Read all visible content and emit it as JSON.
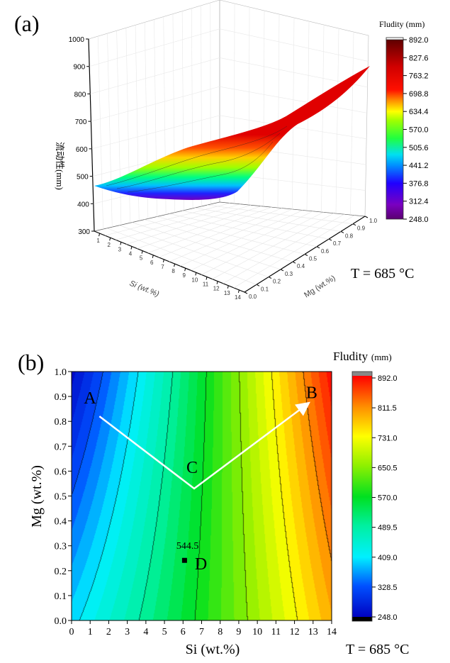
{
  "chart_data": [
    {
      "panel_label": "(a)",
      "type": "surface3d",
      "zlabel": "流动性(mm)",
      "xlabel": "Si (wt.%)",
      "ylabel": "Mg (wt.%)",
      "z_ticks": [
        "1000",
        "900",
        "800",
        "700",
        "600",
        "500",
        "400",
        "300"
      ],
      "x_ticks": [
        "1",
        "2",
        "3",
        "4",
        "5",
        "6",
        "7",
        "8",
        "9",
        "10",
        "11",
        "12",
        "13",
        "14"
      ],
      "y_ticks": [
        "0.0",
        "0.1",
        "0.2",
        "0.3",
        "0.4",
        "0.5",
        "0.6",
        "0.7",
        "0.8",
        "0.9",
        "1.0"
      ],
      "zlim": [
        300,
        1000
      ],
      "colorbar": {
        "title": "Fludity (mm)",
        "ticks": [
          "892.0",
          "827.6",
          "763.2",
          "698.8",
          "634.4",
          "570.0",
          "505.6",
          "441.2",
          "376.8",
          "312.4",
          "248.0"
        ],
        "range": [
          248.0,
          892.0
        ]
      },
      "annotation": "T = 685 °C"
    },
    {
      "panel_label": "(b)",
      "type": "heatmap",
      "xlabel": "Si (wt.%)",
      "ylabel": "Mg (wt.%)",
      "xlim": [
        0,
        14
      ],
      "ylim": [
        0,
        1.0
      ],
      "x_ticks": [
        "0",
        "1",
        "2",
        "3",
        "4",
        "5",
        "6",
        "7",
        "8",
        "9",
        "10",
        "11",
        "12",
        "13",
        "14"
      ],
      "y_ticks": [
        "0.0",
        "0.1",
        "0.2",
        "0.3",
        "0.4",
        "0.5",
        "0.6",
        "0.7",
        "0.8",
        "0.9",
        "1.0"
      ],
      "colorbar": {
        "title": "Fludity",
        "title_unit": "(mm)",
        "ticks": [
          "892.0",
          "811.5",
          "731.0",
          "650.5",
          "570.0",
          "489.5",
          "409.0",
          "328.5",
          "248.0"
        ],
        "range": [
          248.0,
          892.0
        ]
      },
      "points": [
        {
          "label": "A",
          "si": 1.5,
          "mg": 0.82
        },
        {
          "label": "C",
          "si": 6.6,
          "mg": 0.53
        },
        {
          "label": "B",
          "si": 12.7,
          "mg": 0.87
        },
        {
          "label": "D",
          "si": 6.1,
          "mg": 0.24,
          "value_label": "544.5"
        }
      ],
      "annotation": "T = 685 °C"
    }
  ]
}
